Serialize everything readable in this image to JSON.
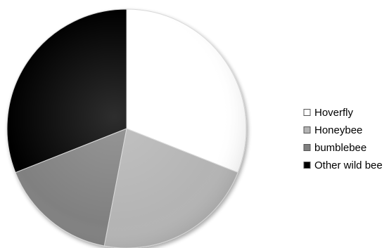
{
  "chart_data": {
    "type": "pie",
    "title": "",
    "categories": [
      "Hoverfly",
      "Honeybee",
      "bumblebee",
      "Other wild bee"
    ],
    "values": [
      31,
      22,
      16,
      31
    ],
    "value_unit": "percent (estimated)",
    "colors": [
      "#ffffff",
      "#b4b4b4",
      "#808080",
      "#000000"
    ],
    "start_angle_deg": 0,
    "direction": "clockwise",
    "legend_position": "right",
    "style": "3D-shaded pie with soft shadow"
  }
}
